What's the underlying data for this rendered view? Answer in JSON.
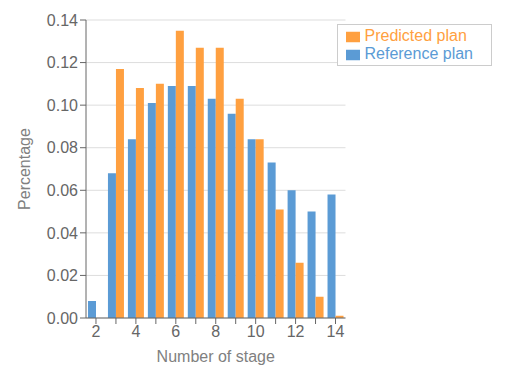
{
  "chart_data": {
    "type": "bar",
    "xlabel": "Number of stage",
    "ylabel": "Percentage",
    "categories": [
      "2",
      null,
      "4",
      null,
      "6",
      null,
      "8",
      null,
      "10",
      null,
      "12",
      null,
      "14"
    ],
    "series": [
      {
        "name": "Reference plan",
        "color": "#5b9bd5",
        "values": [
          0.008,
          0.068,
          0.084,
          0.101,
          0.109,
          0.109,
          0.103,
          0.096,
          0.084,
          0.073,
          0.06,
          0.05,
          0.058
        ]
      },
      {
        "name": "Predicted plan",
        "color": "#ffa040",
        "values": [
          0.0,
          0.117,
          0.108,
          0.11,
          0.135,
          0.127,
          0.127,
          0.103,
          0.084,
          0.051,
          0.026,
          0.01,
          0.001
        ]
      }
    ],
    "ylim": [
      0,
      0.14
    ],
    "yticks": [
      {
        "value": 0,
        "label": "0.00"
      },
      {
        "value": 0.02,
        "label": "0.02"
      },
      {
        "value": 0.04,
        "label": "0.04"
      },
      {
        "value": 0.06,
        "label": "0.06"
      },
      {
        "value": 0.08,
        "label": "0.08"
      },
      {
        "value": 0.1,
        "label": "0.10"
      },
      {
        "value": 0.12,
        "label": "0.12"
      },
      {
        "value": 0.14,
        "label": "0.14"
      }
    ],
    "grid": true,
    "legend": "upper right"
  }
}
